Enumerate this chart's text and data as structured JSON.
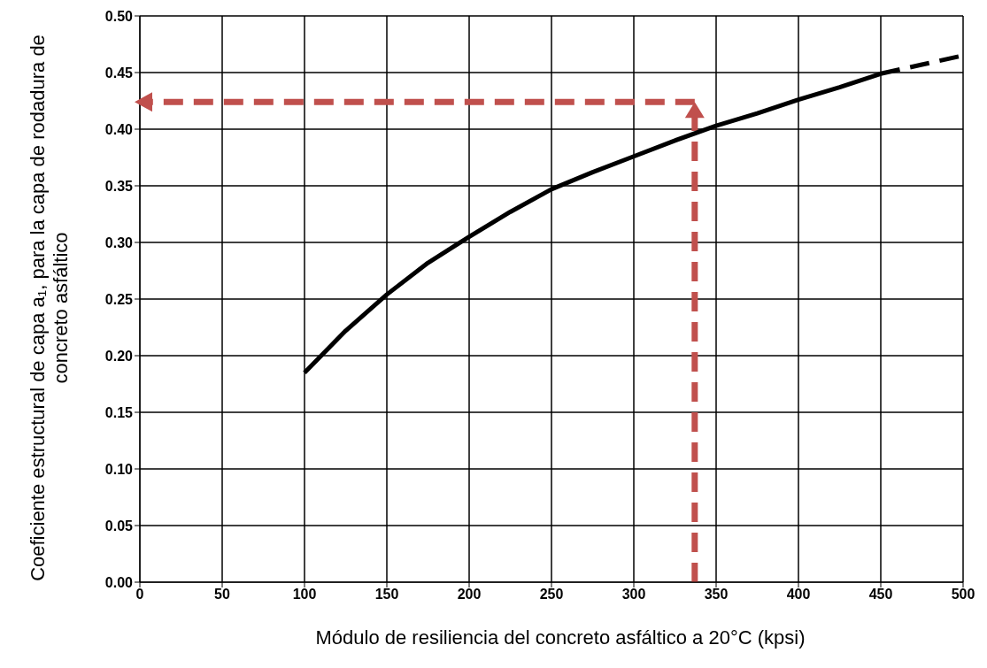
{
  "chart_data": {
    "type": "line",
    "xlabel": "Módulo de resiliencia del concreto asfáltico a 20°C (kpsi)",
    "ylabel": "Coeficiente estructural de capa a₁, para la capa de rodadura de concreto asfáltico",
    "series": [
      {
        "color": "#000000",
        "line_style": "solid",
        "x": [
          100,
          125,
          150,
          175,
          200,
          225,
          250,
          275,
          300,
          325,
          350,
          375,
          400,
          425,
          450
        ],
        "values": [
          0.185,
          0.222,
          0.254,
          0.282,
          0.305,
          0.327,
          0.347,
          0.362,
          0.376,
          0.39,
          0.403,
          0.414,
          0.426,
          0.437,
          0.449
        ]
      },
      {
        "color": "#000000",
        "line_style": "dashed",
        "x": [
          450,
          475,
          500
        ],
        "values": [
          0.449,
          0.457,
          0.465
        ]
      }
    ],
    "xlim": [
      0,
      500
    ],
    "xticks": [
      0,
      50,
      100,
      150,
      200,
      250,
      300,
      350,
      400,
      450,
      500
    ],
    "ylim": [
      0,
      0.5
    ],
    "yticks": [
      {
        "value": 0,
        "label": "0.00"
      },
      0.05,
      {
        "value": 0.1,
        "label": "0.10"
      },
      0.15,
      {
        "value": 0.2,
        "label": "0.20"
      },
      0.25,
      {
        "value": 0.3,
        "label": "0.30"
      },
      0.35,
      {
        "value": 0.4,
        "label": "0.40"
      },
      0.45,
      {
        "value": 0.5,
        "label": "0.50"
      }
    ],
    "ref_lines": [
      {
        "axis": "x",
        "value": 337,
        "color": "#c0504d",
        "line_style": "dashed"
      },
      {
        "axis": "y",
        "value": 0.424,
        "color": "#c0504d",
        "line_style": "dashed"
      }
    ],
    "grid": true,
    "marker": "none"
  }
}
